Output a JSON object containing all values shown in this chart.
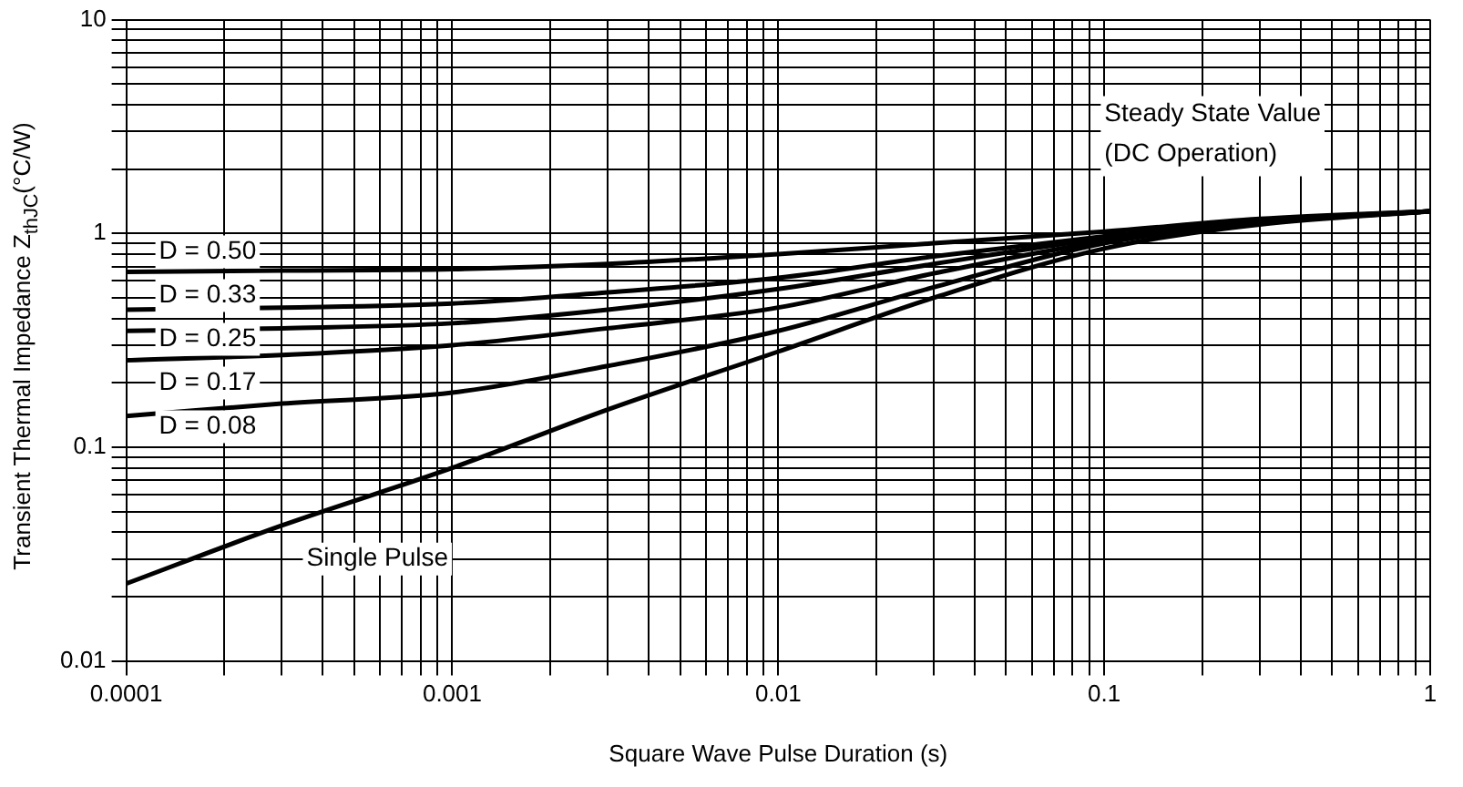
{
  "chart_data": {
    "type": "line",
    "xlabel": "Square Wave Pulse Duration (s)",
    "ylabel": "Transient Thermal Impedance Z$_{thJC}$(°C/W)",
    "x": [
      0.0001,
      0.0003,
      0.001,
      0.003,
      0.01,
      0.03,
      0.1,
      0.3,
      1
    ],
    "series": [
      {
        "name": "D = 0.50",
        "color": "#000000",
        "values": [
          0.66,
          0.67,
          0.68,
          0.72,
          0.8,
          0.9,
          1.02,
          1.17,
          1.27
        ]
      },
      {
        "name": "D = 0.33",
        "color": "#000000",
        "values": [
          0.44,
          0.45,
          0.47,
          0.53,
          0.62,
          0.78,
          0.97,
          1.15,
          1.27
        ]
      },
      {
        "name": "D = 0.25",
        "color": "#000000",
        "values": [
          0.35,
          0.36,
          0.38,
          0.44,
          0.55,
          0.72,
          0.95,
          1.14,
          1.27
        ]
      },
      {
        "name": "D = 0.17",
        "color": "#000000",
        "values": [
          0.255,
          0.27,
          0.3,
          0.36,
          0.45,
          0.65,
          0.92,
          1.13,
          1.27
        ]
      },
      {
        "name": "D = 0.08",
        "color": "#000000",
        "values": [
          0.14,
          0.16,
          0.18,
          0.24,
          0.35,
          0.56,
          0.9,
          1.12,
          1.27
        ]
      },
      {
        "name": "Single Pulse",
        "color": "#000000",
        "values": [
          0.023,
          0.043,
          0.08,
          0.15,
          0.28,
          0.5,
          0.85,
          1.1,
          1.27
        ]
      }
    ],
    "log": "xy",
    "xlim": [
      0.0001,
      1
    ],
    "ylim": [
      0.01,
      10
    ],
    "xticks": [
      0.0001,
      {
        "value": 0.0002,
        "label": null
      },
      {
        "value": 0.0003,
        "label": null
      },
      {
        "value": 0.0004,
        "label": null
      },
      {
        "value": 0.0005,
        "label": null
      },
      {
        "value": 0.0006,
        "label": null
      },
      {
        "value": 0.0007,
        "label": null
      },
      {
        "value": 0.0008,
        "label": null
      },
      {
        "value": 0.0009,
        "label": null
      },
      0.001,
      {
        "value": 0.002,
        "label": null
      },
      {
        "value": 0.003,
        "label": null
      },
      {
        "value": 0.004,
        "label": null
      },
      {
        "value": 0.005,
        "label": null
      },
      {
        "value": 0.006,
        "label": null
      },
      {
        "value": 0.007,
        "label": null
      },
      {
        "value": 0.008,
        "label": null
      },
      {
        "value": 0.009,
        "label": null
      },
      0.01,
      {
        "value": 0.02,
        "label": null
      },
      {
        "value": 0.03,
        "label": null
      },
      {
        "value": 0.04,
        "label": null
      },
      {
        "value": 0.05,
        "label": null
      },
      {
        "value": 0.06,
        "label": null
      },
      {
        "value": 0.07,
        "label": null
      },
      {
        "value": 0.08,
        "label": null
      },
      {
        "value": 0.09,
        "label": null
      },
      0.1,
      {
        "value": 0.2,
        "label": null
      },
      {
        "value": 0.3,
        "label": null
      },
      {
        "value": 0.4,
        "label": null
      },
      {
        "value": 0.5,
        "label": null
      },
      {
        "value": 0.6,
        "label": null
      },
      {
        "value": 0.7,
        "label": null
      },
      {
        "value": 0.8,
        "label": null
      },
      {
        "value": 0.9,
        "label": null
      },
      1
    ],
    "yticks": [
      0.01,
      {
        "value": 0.02,
        "label": null
      },
      {
        "value": 0.03,
        "label": null
      },
      {
        "value": 0.04,
        "label": null
      },
      {
        "value": 0.05,
        "label": null
      },
      {
        "value": 0.06,
        "label": null
      },
      {
        "value": 0.07,
        "label": null
      },
      {
        "value": 0.08,
        "label": null
      },
      {
        "value": 0.09,
        "label": null
      },
      0.1,
      {
        "value": 0.2,
        "label": null
      },
      {
        "value": 0.3,
        "label": null
      },
      {
        "value": 0.4,
        "label": null
      },
      {
        "value": 0.5,
        "label": null
      },
      {
        "value": 0.6,
        "label": null
      },
      {
        "value": 0.7,
        "label": null
      },
      {
        "value": 0.8,
        "label": null
      },
      {
        "value": 0.9,
        "label": null
      },
      1,
      {
        "value": 2,
        "label": null
      },
      {
        "value": 3,
        "label": null
      },
      {
        "value": 4,
        "label": null
      },
      {
        "value": 5,
        "label": null
      },
      {
        "value": 6,
        "label": null
      },
      {
        "value": 7,
        "label": null
      },
      {
        "value": 8,
        "label": null
      },
      {
        "value": 9,
        "label": null
      },
      10
    ],
    "grid": true,
    "legend": false,
    "marker": "none",
    "line_style": "solid",
    "annotations": [
      "Steady State Value\n(DC Operation)"
    ]
  }
}
